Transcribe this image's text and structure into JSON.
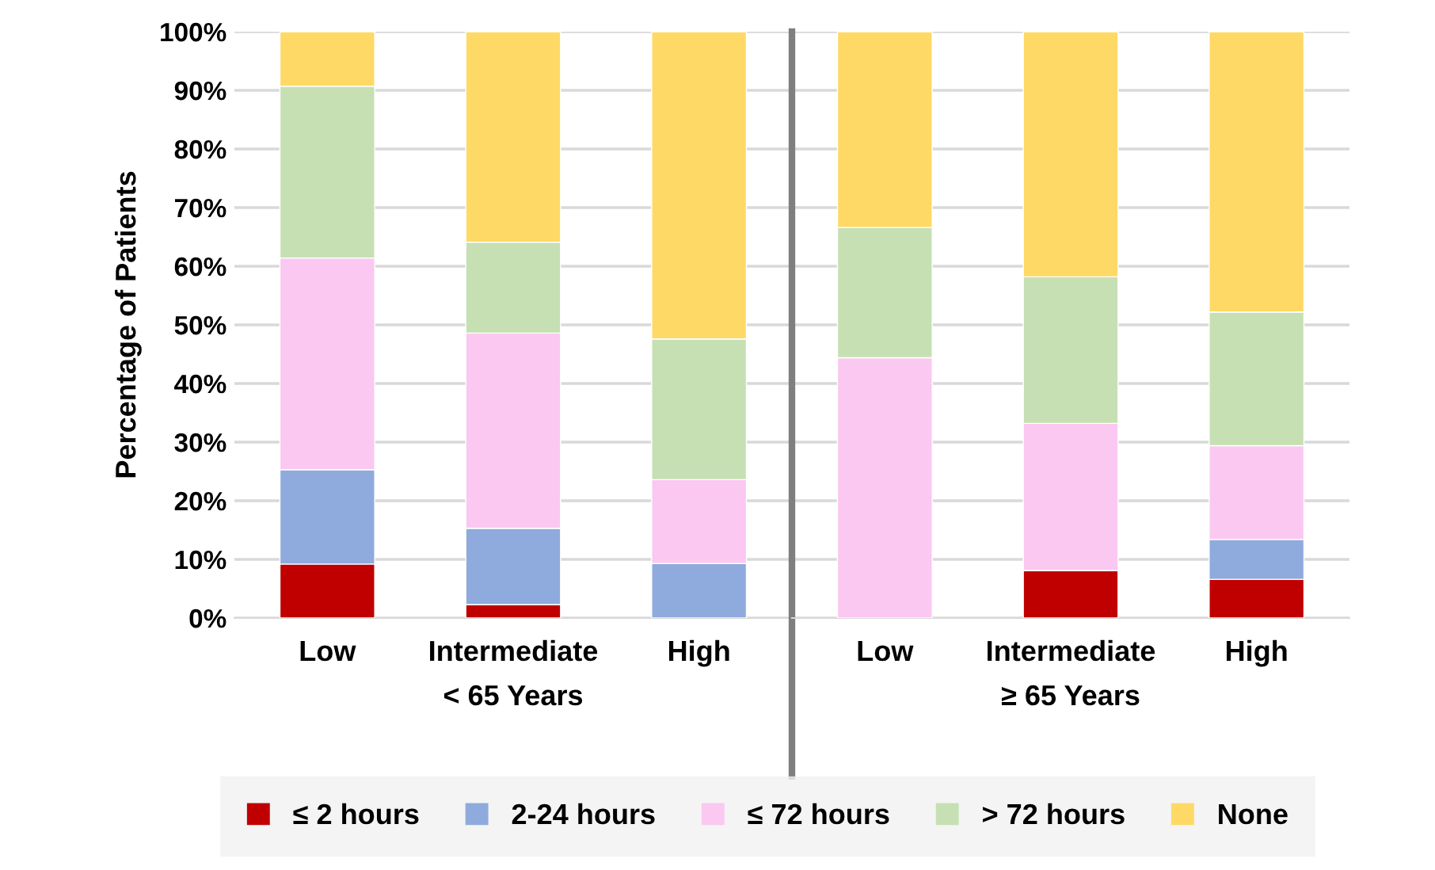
{
  "chart_data": [
    {
      "type": "bar",
      "stacked": true,
      "ylabel": "Percentage of Patients",
      "xlabel": "< 65 Years",
      "categories": [
        "Low",
        "Intermediate",
        "High"
      ],
      "ylim": [
        0,
        100
      ],
      "yticks": [
        {
          "value": 0,
          "label": "0%"
        },
        {
          "value": 10,
          "label": "10%"
        },
        {
          "value": 20,
          "label": "20%"
        },
        {
          "value": 30,
          "label": "30%"
        },
        {
          "value": 40,
          "label": "40%"
        },
        {
          "value": 50,
          "label": "50%"
        },
        {
          "value": 60,
          "label": "60%"
        },
        {
          "value": 70,
          "label": "70%"
        },
        {
          "value": 80,
          "label": "80%"
        },
        {
          "value": 90,
          "label": "90%"
        },
        {
          "value": 100,
          "label": "100%"
        }
      ],
      "grid": "y",
      "legend": "bottom",
      "series": [
        {
          "name": "≤ 2 hours",
          "color": "#c00000",
          "values": [
            9.2,
            2.3,
            0
          ]
        },
        {
          "name": "2-24 hours",
          "color": "#8faadc",
          "values": [
            16.1,
            13.0,
            9.3
          ]
        },
        {
          "name": "≤ 72 hours",
          "color": "#fac8f0",
          "values": [
            36.1,
            33.3,
            14.3
          ]
        },
        {
          "name": "> 72 hours",
          "color": "#c6e0b4",
          "values": [
            29.3,
            15.5,
            24.0
          ]
        },
        {
          "name": "None",
          "color": "#ffd966",
          "values": [
            9.3,
            35.9,
            52.4
          ]
        }
      ]
    },
    {
      "type": "bar",
      "stacked": true,
      "xlabel": "≥ 65 Years",
      "categories": [
        "Low",
        "Intermediate",
        "High"
      ],
      "ylim": [
        0,
        100
      ],
      "tick_labels": "x",
      "grid": "y",
      "series": [
        {
          "color": "#c00000",
          "values": [
            0,
            8.1,
            6.6
          ]
        },
        {
          "color": "#8faadc",
          "values": [
            0,
            0,
            6.8
          ]
        },
        {
          "color": "#fac8f0",
          "values": [
            44.4,
            25.1,
            16.0
          ]
        },
        {
          "color": "#c6e0b4",
          "values": [
            22.2,
            25.0,
            22.8
          ]
        },
        {
          "color": "#ffd966",
          "values": [
            33.4,
            41.8,
            47.8
          ]
        }
      ]
    }
  ]
}
